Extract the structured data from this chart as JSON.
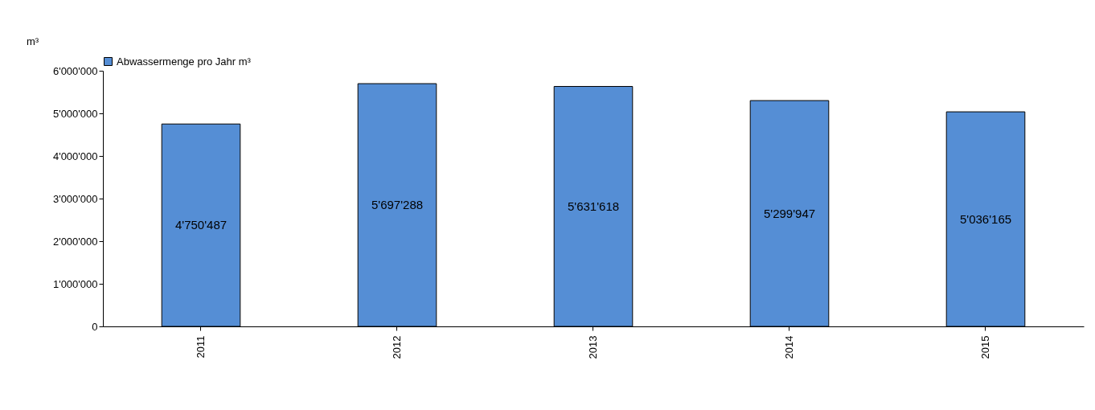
{
  "chart_data": {
    "type": "bar",
    "ylabel": "m³",
    "categories": [
      "2011",
      "2012",
      "2013",
      "2014",
      "2015"
    ],
    "series": [
      {
        "name": "Abwassermenge pro Jahr m³",
        "color": "#558ed5",
        "values": [
          4750487,
          5697288,
          5631618,
          5299947,
          5036165
        ],
        "value_labels": [
          "4'750'487",
          "5'697'288",
          "5'631'618",
          "5'299'947",
          "5'036'165"
        ]
      }
    ],
    "ylim": [
      0,
      6000000
    ],
    "yticks": [
      0,
      {
        "value": 1000000,
        "label": "1'000'000"
      },
      {
        "value": 2000000,
        "label": "2'000'000"
      },
      {
        "value": 3000000,
        "label": "3'000'000"
      },
      {
        "value": 4000000,
        "label": "4'000'000"
      },
      {
        "value": 5000000,
        "label": "5'000'000"
      },
      {
        "value": 6000000,
        "label": "6'000'000"
      }
    ],
    "grid": false,
    "legend": "top"
  }
}
